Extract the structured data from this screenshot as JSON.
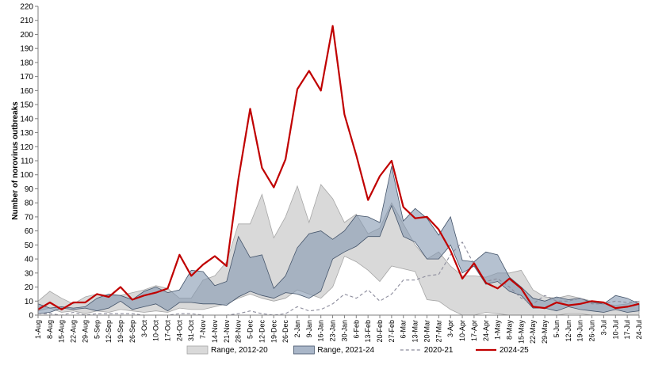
{
  "chart_data": {
    "type": "line",
    "title": "",
    "xlabel": "",
    "ylabel": "Number of norovirus outbreaks",
    "ylim": [
      0,
      220
    ],
    "ytick_step": 10,
    "grid": false,
    "legend_position": "bottom",
    "categories": [
      "1-Aug",
      "8-Aug",
      "15-Aug",
      "22-Aug",
      "29-Aug",
      "5-Sep",
      "12-Sep",
      "19-Sep",
      "26-Sep",
      "3-Oct",
      "10-Oct",
      "17-Oct",
      "24-Oct",
      "31-Oct",
      "7-Nov",
      "14-Nov",
      "21-Nov",
      "28-Nov",
      "5-Dec",
      "12-Dec",
      "19-Dec",
      "26-Dec",
      "2-Jan",
      "9-Jan",
      "16-Jan",
      "23-Jan",
      "30-Jan",
      "6-Feb",
      "13-Feb",
      "20-Feb",
      "27-Feb",
      "6-Mar",
      "13-Mar",
      "20-Mar",
      "27-Mar",
      "3-Apr",
      "10-Apr",
      "17-Apr",
      "24-Apr",
      "1-May",
      "8-May",
      "15-May",
      "22-May",
      "29-May",
      "5-Jun",
      "12-Jun",
      "19-Jun",
      "26-Jun",
      "3-Jul",
      "10-Jul",
      "17-Jul",
      "24-Jul"
    ],
    "legend": [
      {
        "label": "Range, 2012-20",
        "kind": "area",
        "color": "#d9d9d9",
        "stroke": "#a6a6a6"
      },
      {
        "label": "Range, 2021-24",
        "kind": "area",
        "color": "#8497b0",
        "stroke": "#44546a"
      },
      {
        "label": "2020-21",
        "kind": "dashed",
        "color": "#8c8c9c"
      },
      {
        "label": "2024-25",
        "kind": "line",
        "color": "#c00000"
      }
    ],
    "ranges": [
      {
        "name": "Range, 2012-20",
        "low": [
          3,
          5,
          2,
          3,
          1,
          3,
          2,
          4,
          3,
          2,
          3,
          2,
          5,
          4,
          4,
          6,
          8,
          12,
          15,
          12,
          10,
          12,
          18,
          15,
          12,
          20,
          42,
          38,
          32,
          24,
          35,
          33,
          31,
          11,
          10,
          4,
          0,
          0,
          2,
          1,
          0,
          0,
          0,
          0,
          0,
          1,
          1,
          0,
          0,
          0,
          0,
          0
        ],
        "high": [
          10,
          17,
          12,
          8,
          13,
          15,
          14,
          14,
          16,
          18,
          21,
          19,
          12,
          12,
          25,
          28,
          38,
          65,
          65,
          86,
          55,
          70,
          92,
          66,
          93,
          83,
          66,
          72,
          58,
          62,
          80,
          65,
          50,
          40,
          45,
          35,
          28,
          28,
          27,
          30,
          30,
          32,
          18,
          13,
          12,
          14,
          12,
          10,
          8,
          7,
          8,
          10
        ]
      },
      {
        "name": "Range, 2021-24",
        "low": [
          1,
          2,
          5,
          4,
          5,
          3,
          5,
          10,
          4,
          6,
          8,
          3,
          9,
          9,
          8,
          8,
          7,
          13,
          17,
          14,
          12,
          16,
          15,
          12,
          17,
          40,
          45,
          49,
          56,
          56,
          78,
          56,
          52,
          40,
          40,
          50,
          30,
          35,
          22,
          24,
          17,
          14,
          5,
          5,
          3,
          6,
          4,
          3,
          2,
          4,
          2,
          3
        ],
        "high": [
          8,
          5,
          6,
          5,
          6,
          12,
          15,
          14,
          11,
          17,
          20,
          16,
          18,
          32,
          31,
          21,
          24,
          56,
          41,
          43,
          19,
          28,
          48,
          58,
          60,
          54,
          60,
          71,
          70,
          66,
          106,
          67,
          76,
          69,
          57,
          70,
          39,
          38,
          45,
          43,
          27,
          20,
          12,
          10,
          13,
          11,
          12,
          9,
          8,
          14,
          12,
          8
        ]
      }
    ],
    "series": [
      {
        "name": "2020-21",
        "style": "dashed",
        "values": [
          1,
          1,
          0,
          2,
          0,
          1,
          1,
          1,
          1,
          0,
          0,
          0,
          1,
          1,
          0,
          0,
          0,
          1,
          3,
          1,
          0,
          1,
          6,
          3,
          4,
          8,
          15,
          12,
          18,
          10,
          15,
          25,
          25,
          28,
          29,
          43,
          52,
          36,
          24,
          26,
          20,
          12,
          8,
          14,
          10,
          10,
          12,
          8,
          8,
          10,
          9,
          10
        ]
      },
      {
        "name": "2024-25",
        "style": "solid",
        "values": [
          4,
          9,
          4,
          9,
          9,
          15,
          13,
          20,
          11,
          14,
          16,
          19,
          43,
          28,
          36,
          42,
          35,
          97,
          147,
          105,
          91,
          111,
          161,
          174,
          160,
          206,
          143,
          114,
          82,
          99,
          110,
          77,
          69,
          70,
          61,
          46,
          26,
          37,
          23,
          19,
          26,
          19,
          6,
          5,
          9,
          7,
          8,
          10,
          9,
          5,
          6,
          8
        ]
      }
    ]
  }
}
